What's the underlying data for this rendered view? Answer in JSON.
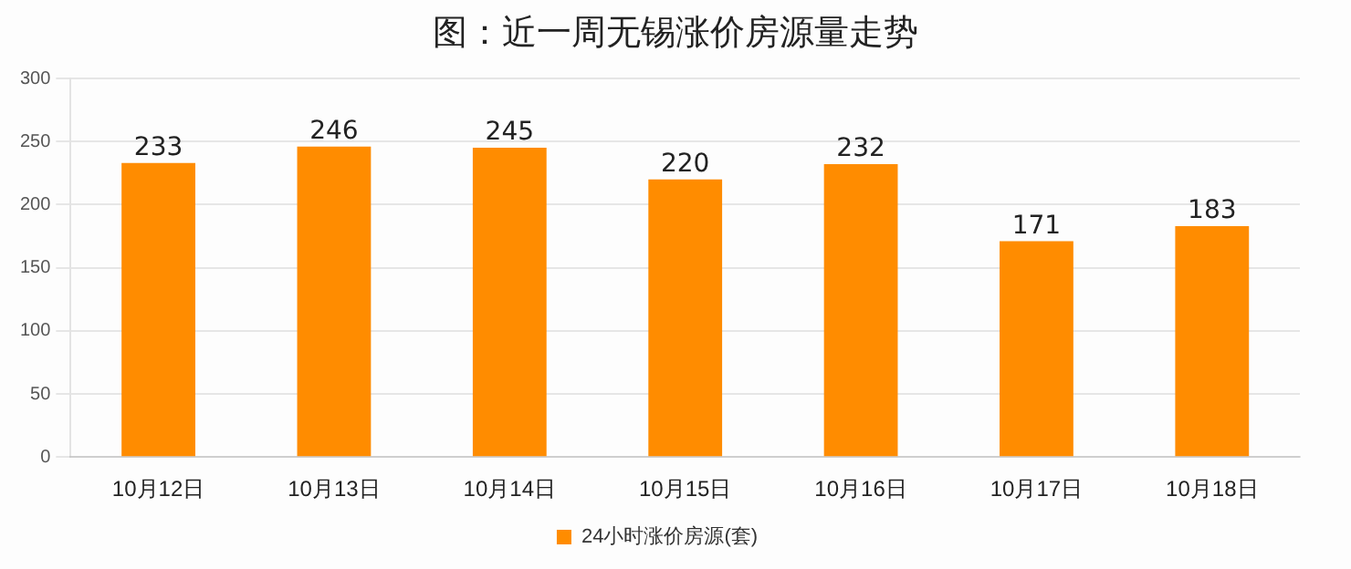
{
  "chart_data": {
    "type": "bar",
    "title": "图：近一周无锡涨价房源量走势",
    "categories": [
      "10月12日",
      "10月13日",
      "10月14日",
      "10月15日",
      "10月16日",
      "10月17日",
      "10月18日"
    ],
    "series": [
      {
        "name": "24小时涨价房源(套)",
        "color": "#ff8c00",
        "values": [
          233,
          246,
          245,
          220,
          232,
          171,
          183
        ]
      }
    ],
    "ylim": [
      0,
      300
    ],
    "yticks": [
      0,
      50,
      100,
      150,
      200,
      250,
      300
    ],
    "grid": "y",
    "legend": "bottom",
    "data_labels": true
  }
}
